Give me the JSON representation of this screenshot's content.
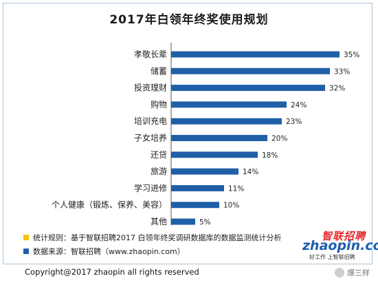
{
  "title": "2017年白领年终奖使用规划",
  "chart_data": {
    "type": "bar",
    "orientation": "horizontal",
    "categories": [
      "孝敬长辈",
      "储蓄",
      "投资理财",
      "购物",
      "培训充电",
      "子女培养",
      "还贷",
      "旅游",
      "学习进修",
      "个人健康（锻炼、保养、美容）",
      "其他"
    ],
    "values": [
      35,
      33,
      32,
      24,
      23,
      20,
      18,
      14,
      11,
      10,
      5
    ],
    "value_labels": [
      "35%",
      "33%",
      "32%",
      "24%",
      "23%",
      "20%",
      "18%",
      "14%",
      "11%",
      "10%",
      "5%"
    ],
    "unit": "%",
    "xlim": [
      0,
      35
    ],
    "bar_color": "#1f5fa8",
    "grid": false,
    "legend": "none"
  },
  "notes": {
    "rule": {
      "color": "#f5c400",
      "text": "统计规则：基于智联招聘2017 白领年终奖调研数据库的数据监测统计分析"
    },
    "source": {
      "color": "#1f5fa8",
      "text": "数据来源：智联招聘（www.zhaopin.com）"
    }
  },
  "logo": {
    "cn": "智联招聘",
    "en": "zhaopin.com",
    "slogan": "好工作 上智联招聘"
  },
  "copyright": "Copyright@2017 zhaopin all rights reserved",
  "watermark": "爆三样"
}
